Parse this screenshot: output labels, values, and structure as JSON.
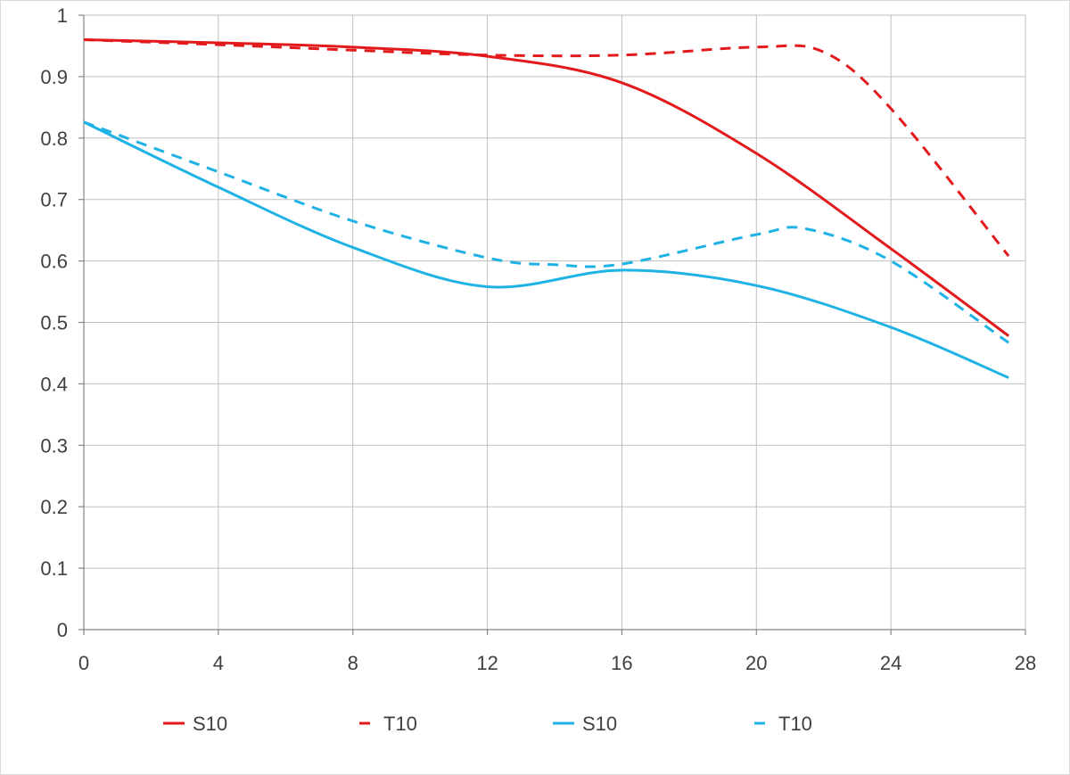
{
  "chart_data": {
    "type": "line",
    "title": "",
    "xlabel": "",
    "ylabel": "",
    "xlim": [
      0,
      28
    ],
    "ylim": [
      0,
      1
    ],
    "x_ticks": [
      "0",
      "4",
      "8",
      "12",
      "16",
      "20",
      "24",
      "28"
    ],
    "y_ticks": [
      "0",
      "0.1",
      "0.2",
      "0.3",
      "0.4",
      "0.5",
      "0.6",
      "0.7",
      "0.8",
      "0.9",
      "1"
    ],
    "grid": true,
    "legend_position": "bottom",
    "series": [
      {
        "name": "S10",
        "color": "#e31a1c",
        "dash": "solid",
        "points": [
          [
            0,
            0.96
          ],
          [
            4,
            0.955
          ],
          [
            8,
            0.948
          ],
          [
            12,
            0.933
          ],
          [
            16,
            0.89
          ],
          [
            20,
            0.775
          ],
          [
            24,
            0.62
          ],
          [
            27.5,
            0.478
          ]
        ]
      },
      {
        "name": "T10",
        "color": "#e31a1c",
        "dash": "dashed",
        "points": [
          [
            0,
            0.96
          ],
          [
            4,
            0.952
          ],
          [
            8,
            0.943
          ],
          [
            12,
            0.935
          ],
          [
            16,
            0.935
          ],
          [
            20,
            0.948
          ],
          [
            22,
            0.94
          ],
          [
            24,
            0.848
          ],
          [
            27.5,
            0.608
          ]
        ]
      },
      {
        "name": "S10",
        "color": "#1fb2e5",
        "dash": "solid",
        "points": [
          [
            0,
            0.826
          ],
          [
            4,
            0.72
          ],
          [
            8,
            0.622
          ],
          [
            12,
            0.558
          ],
          [
            16,
            0.585
          ],
          [
            20,
            0.56
          ],
          [
            24,
            0.492
          ],
          [
            27.5,
            0.41
          ]
        ]
      },
      {
        "name": "T10",
        "color": "#1fb2e5",
        "dash": "dashed",
        "points": [
          [
            0,
            0.826
          ],
          [
            4,
            0.745
          ],
          [
            8,
            0.665
          ],
          [
            12,
            0.605
          ],
          [
            14,
            0.594
          ],
          [
            16,
            0.595
          ],
          [
            20,
            0.643
          ],
          [
            21.5,
            0.652
          ],
          [
            24,
            0.6
          ],
          [
            27.5,
            0.467
          ]
        ]
      }
    ]
  }
}
